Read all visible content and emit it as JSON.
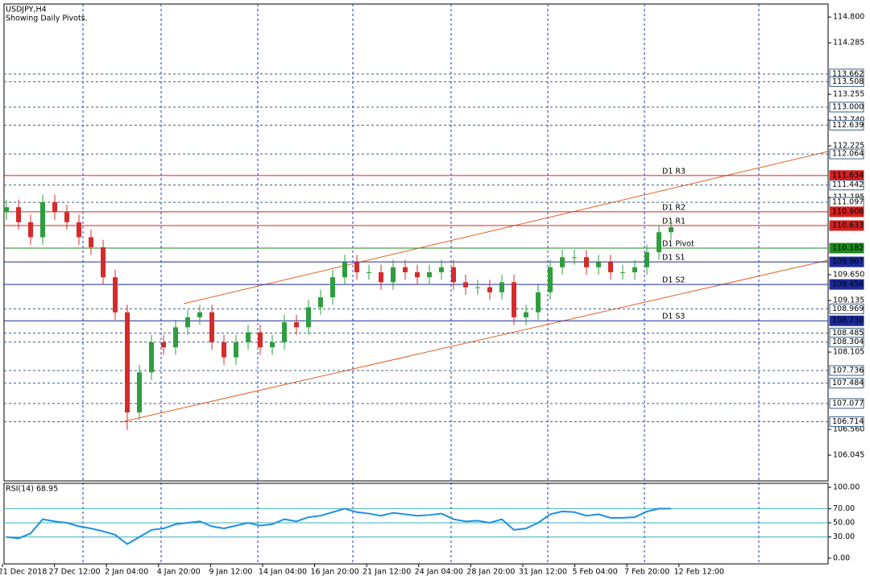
{
  "header": {
    "symbol": "USDJPY,H4",
    "subtitle": "Showing Daily Pivots."
  },
  "chart_data": [
    {
      "type": "candlestick",
      "ylim": [
        105.53,
        115.06
      ],
      "yticks": [
        {
          "value": 114.8,
          "label": "114.800"
        },
        {
          "value": 114.285,
          "label": "114.285"
        },
        {
          "value": 113.255,
          "label": "113.255"
        },
        {
          "value": 112.74,
          "label": "112.740"
        },
        {
          "value": 112.225,
          "label": "112.225"
        },
        {
          "value": 111.195,
          "label": "111.195"
        },
        {
          "value": 109.65,
          "label": "109.650"
        },
        {
          "value": 109.135,
          "label": "109.135"
        },
        {
          "value": 108.105,
          "label": "108.105"
        },
        {
          "value": 106.56,
          "label": "106.560"
        },
        {
          "value": 106.045,
          "label": "106.045"
        }
      ],
      "up_color": "#2e9e3e",
      "down_color": "#d42b2b",
      "open": [
        110.9,
        111.0,
        110.7,
        110.4,
        111.1,
        110.9,
        110.7,
        110.4,
        110.2,
        109.6,
        108.9,
        106.9,
        107.7,
        108.3,
        108.2,
        108.6,
        108.8,
        108.9,
        108.3,
        108.0,
        108.3,
        108.5,
        108.2,
        108.3,
        108.7,
        108.6,
        109.0,
        109.2,
        109.6,
        109.9,
        109.7,
        109.7,
        109.5,
        109.8,
        109.7,
        109.6,
        109.7,
        109.8,
        109.5,
        109.4,
        109.4,
        109.3,
        109.5,
        108.8,
        108.9,
        109.3,
        109.8,
        110.0,
        110.0,
        109.8,
        109.9,
        109.7,
        109.7,
        109.8,
        110.1,
        110.5
      ],
      "high": [
        111.15,
        111.15,
        110.85,
        111.25,
        111.25,
        111.05,
        110.85,
        110.55,
        110.35,
        109.75,
        109.05,
        107.85,
        108.45,
        108.45,
        108.75,
        108.95,
        109.05,
        109.05,
        108.45,
        108.45,
        108.65,
        108.65,
        108.45,
        108.85,
        108.85,
        109.15,
        109.35,
        109.75,
        110.05,
        110.05,
        109.85,
        109.85,
        109.95,
        109.95,
        109.85,
        109.85,
        109.95,
        109.95,
        109.65,
        109.55,
        109.55,
        109.65,
        109.65,
        109.05,
        109.45,
        109.95,
        110.15,
        110.15,
        110.15,
        110.05,
        110.05,
        109.85,
        109.95,
        110.25,
        110.65,
        110.75
      ],
      "low": [
        110.75,
        110.55,
        110.25,
        110.25,
        110.75,
        110.55,
        110.25,
        110.05,
        109.45,
        108.75,
        106.55,
        106.75,
        107.55,
        108.05,
        108.05,
        108.45,
        108.65,
        108.15,
        107.85,
        107.85,
        108.15,
        108.05,
        108.05,
        108.15,
        108.45,
        108.45,
        108.85,
        109.05,
        109.45,
        109.55,
        109.55,
        109.35,
        109.35,
        109.55,
        109.45,
        109.45,
        109.55,
        109.35,
        109.25,
        109.25,
        109.15,
        109.15,
        108.65,
        108.65,
        108.75,
        109.15,
        109.65,
        109.85,
        109.65,
        109.65,
        109.55,
        109.55,
        109.55,
        109.65,
        109.95,
        110.35
      ],
      "close": [
        111.0,
        110.7,
        110.4,
        111.1,
        110.9,
        110.7,
        110.4,
        110.2,
        109.6,
        108.9,
        106.9,
        107.7,
        108.3,
        108.2,
        108.6,
        108.8,
        108.9,
        108.3,
        108.0,
        108.3,
        108.5,
        108.2,
        108.3,
        108.7,
        108.6,
        109.0,
        109.2,
        109.6,
        109.9,
        109.7,
        109.7,
        109.5,
        109.8,
        109.7,
        109.6,
        109.7,
        109.8,
        109.5,
        109.4,
        109.4,
        109.3,
        109.5,
        108.8,
        108.9,
        109.3,
        109.8,
        110.0,
        110.0,
        109.8,
        109.9,
        109.7,
        109.7,
        109.8,
        110.1,
        110.5,
        110.6
      ],
      "levels": [
        {
          "value": 113.662,
          "label": "113.662",
          "color": "#3a5f86",
          "style": "dashed"
        },
        {
          "value": 113.508,
          "label": "113.508",
          "color": "#3a5f86",
          "style": "dashed"
        },
        {
          "value": 113.0,
          "label": "113.000",
          "color": "#3a5f86",
          "style": "dashed"
        },
        {
          "value": 112.639,
          "label": "112.639",
          "color": "#3a5f86",
          "style": "dashed"
        },
        {
          "value": 112.064,
          "label": "112.064",
          "color": "#3a5f86",
          "style": "dashed"
        },
        {
          "value": 111.634,
          "label": "111.634",
          "color": "#d42020",
          "style": "solid",
          "name": "D1 R3"
        },
        {
          "value": 111.442,
          "label": "111.442",
          "color": "#3a5f86",
          "style": "dashed"
        },
        {
          "value": 111.097,
          "label": "111.097",
          "color": "#3a5f86",
          "style": "dashed"
        },
        {
          "value": 110.908,
          "label": "110.908",
          "color": "#d42020",
          "style": "solid",
          "name": "D1 R2"
        },
        {
          "value": 110.633,
          "label": "110.633",
          "color": "#d42020",
          "style": "solid",
          "name": "D1 R1"
        },
        {
          "value": 110.182,
          "label": "110.182",
          "color": "#1e8a1e",
          "style": "solid",
          "name": "D1 Pivot"
        },
        {
          "value": 109.907,
          "label": "109.907",
          "color": "#1a2a9a",
          "style": "solid",
          "name": "D1 S1"
        },
        {
          "value": 109.456,
          "label": "109.456",
          "color": "#1a2a9a",
          "style": "solid",
          "name": "D1 S2"
        },
        {
          "value": 108.969,
          "label": "108.969",
          "color": "#3a5f86",
          "style": "dashed"
        },
        {
          "value": 108.73,
          "label": "108.730",
          "color": "#1a2a9a",
          "style": "solid",
          "name": "D1 S3"
        },
        {
          "value": 108.485,
          "label": "108.485",
          "color": "#3a5f86",
          "style": "dashed"
        },
        {
          "value": 108.304,
          "label": "108.304",
          "color": "#3a5f86",
          "style": "dashed"
        },
        {
          "value": 107.736,
          "label": "107.736",
          "color": "#3a5f86",
          "style": "dashed"
        },
        {
          "value": 107.484,
          "label": "107.484",
          "color": "#3a5f86",
          "style": "dashed"
        },
        {
          "value": 107.077,
          "label": "107.077",
          "color": "#3a5f86",
          "style": "dashed"
        },
        {
          "value": 106.714,
          "label": "106.714",
          "color": "#3a5f86",
          "style": "dashed"
        }
      ]
    },
    {
      "type": "line",
      "title": "RSI(14) 68.95",
      "color": "#1e90e0",
      "ylim": [
        -8,
        105.7
      ],
      "yticks": [
        {
          "value": 100,
          "label": "100.00"
        },
        {
          "value": 70,
          "label": "70.00"
        },
        {
          "value": 50,
          "label": "50.00"
        },
        {
          "value": 30,
          "label": "30.00"
        },
        {
          "value": 0,
          "label": "0.00"
        }
      ],
      "levels": [
        70,
        50,
        30
      ],
      "values": [
        30,
        28,
        35,
        55,
        52,
        50,
        45,
        42,
        38,
        33,
        20,
        30,
        40,
        42,
        48,
        50,
        52,
        45,
        42,
        46,
        50,
        46,
        48,
        55,
        52,
        58,
        60,
        65,
        70,
        65,
        63,
        60,
        64,
        62,
        60,
        61,
        63,
        55,
        52,
        53,
        50,
        55,
        40,
        42,
        50,
        62,
        66,
        65,
        60,
        62,
        57,
        57,
        58,
        66,
        70,
        70
      ]
    }
  ],
  "x_labels": [
    "21 Dec 2018",
    "27 Dec 12:00",
    "2 Jan 04:00",
    "4 Jan 20:00",
    "9 Jan 12:00",
    "14 Jan 04:00",
    "16 Jan 20:00",
    "21 Jan 12:00",
    "24 Jan 04:00",
    "28 Jan 20:00",
    "31 Jan 12:00",
    "5 Feb 04:00",
    "7 Feb 20:00",
    "12 Feb 12:00"
  ]
}
